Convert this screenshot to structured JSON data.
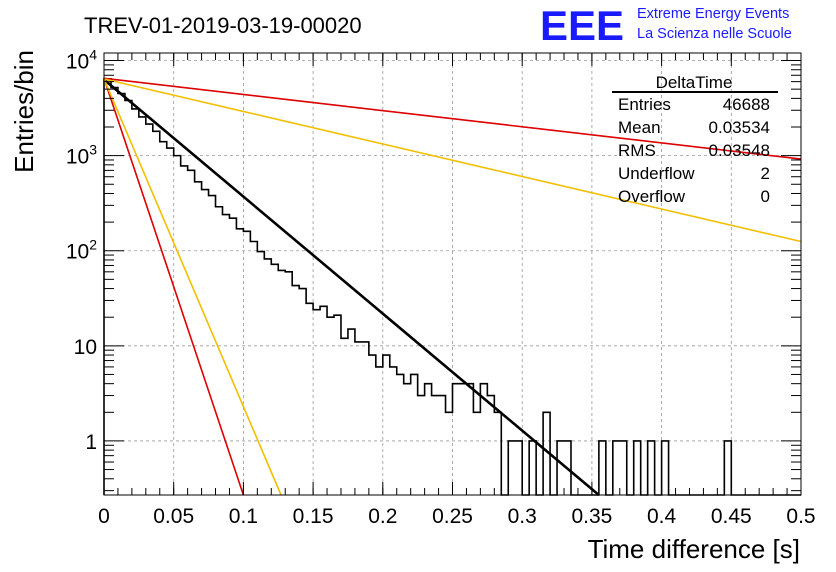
{
  "title": "TREV-01-2019-03-19-00020",
  "logo": {
    "mark": "EEE",
    "line1": "Extreme Energy Events",
    "line2": "La Scienza nelle Scuole",
    "color": "#1a1aff"
  },
  "stats_box": {
    "title": "DeltaTime",
    "rows": [
      {
        "label": "Entries",
        "value": "46688"
      },
      {
        "label": "Mean",
        "value": "0.03534"
      },
      {
        "label": "RMS",
        "value": "0.03548"
      },
      {
        "label": "Underflow",
        "value": "2"
      },
      {
        "label": "Overflow",
        "value": "0"
      }
    ]
  },
  "chart_data": {
    "type": "histogram",
    "title": "TREV-01-2019-03-19-00020",
    "xlabel": "Time difference [s]",
    "ylabel": "Entries/bin",
    "xlim": [
      0,
      0.5
    ],
    "ylim": [
      0.27,
      12000
    ],
    "yscale": "log",
    "grid": true,
    "x_ticks": [
      "0",
      "0.05",
      "0.1",
      "0.15",
      "0.2",
      "0.25",
      "0.3",
      "0.35",
      "0.4",
      "0.45",
      "0.5"
    ],
    "y_ticks": [
      {
        "base": "10",
        "exp": "4",
        "value": 10000
      },
      {
        "base": "10",
        "exp": "3",
        "value": 1000
      },
      {
        "base": "10",
        "exp": "2",
        "value": 100
      },
      {
        "base": "10",
        "exp": "",
        "value": 10
      },
      {
        "base": "1",
        "exp": "",
        "value": 1
      }
    ],
    "bin_width": 0.005,
    "histogram": {
      "color": "#000000",
      "bins": [
        [
          0.0,
          6400
        ],
        [
          0.005,
          5200
        ],
        [
          0.01,
          4500
        ],
        [
          0.015,
          3800
        ],
        [
          0.02,
          3100
        ],
        [
          0.025,
          2550
        ],
        [
          0.03,
          2150
        ],
        [
          0.035,
          1800
        ],
        [
          0.04,
          1400
        ],
        [
          0.045,
          1200
        ],
        [
          0.05,
          1000
        ],
        [
          0.055,
          780
        ],
        [
          0.06,
          700
        ],
        [
          0.065,
          530
        ],
        [
          0.07,
          440
        ],
        [
          0.075,
          380
        ],
        [
          0.08,
          290
        ],
        [
          0.085,
          240
        ],
        [
          0.09,
          220
        ],
        [
          0.095,
          170
        ],
        [
          0.1,
          160
        ],
        [
          0.105,
          125
        ],
        [
          0.11,
          98
        ],
        [
          0.115,
          82
        ],
        [
          0.12,
          72
        ],
        [
          0.125,
          62
        ],
        [
          0.13,
          60
        ],
        [
          0.135,
          43
        ],
        [
          0.14,
          40
        ],
        [
          0.145,
          28
        ],
        [
          0.15,
          24
        ],
        [
          0.155,
          26
        ],
        [
          0.16,
          20
        ],
        [
          0.165,
          21
        ],
        [
          0.17,
          12
        ],
        [
          0.175,
          15
        ],
        [
          0.18,
          11
        ],
        [
          0.185,
          11
        ],
        [
          0.19,
          8
        ],
        [
          0.195,
          6
        ],
        [
          0.2,
          8
        ],
        [
          0.205,
          6
        ],
        [
          0.21,
          5
        ],
        [
          0.215,
          4
        ],
        [
          0.22,
          5
        ],
        [
          0.225,
          3
        ],
        [
          0.23,
          4
        ],
        [
          0.235,
          3
        ],
        [
          0.24,
          3
        ],
        [
          0.245,
          2
        ],
        [
          0.25,
          4
        ],
        [
          0.255,
          4
        ],
        [
          0.26,
          4
        ],
        [
          0.265,
          2
        ],
        [
          0.27,
          4
        ],
        [
          0.275,
          3
        ],
        [
          0.28,
          2
        ],
        [
          0.285,
          0
        ],
        [
          0.29,
          1
        ],
        [
          0.295,
          1
        ],
        [
          0.3,
          0
        ],
        [
          0.305,
          1
        ],
        [
          0.31,
          0
        ],
        [
          0.315,
          2
        ],
        [
          0.32,
          0
        ],
        [
          0.325,
          1
        ],
        [
          0.33,
          1
        ],
        [
          0.335,
          0
        ],
        [
          0.34,
          0
        ],
        [
          0.345,
          0
        ],
        [
          0.35,
          0
        ],
        [
          0.355,
          1
        ],
        [
          0.36,
          0
        ],
        [
          0.365,
          1
        ],
        [
          0.37,
          1
        ],
        [
          0.375,
          0
        ],
        [
          0.38,
          1
        ],
        [
          0.385,
          0
        ],
        [
          0.39,
          1
        ],
        [
          0.395,
          0
        ],
        [
          0.4,
          1
        ],
        [
          0.405,
          0
        ],
        [
          0.41,
          0
        ],
        [
          0.415,
          0
        ],
        [
          0.42,
          0
        ],
        [
          0.425,
          0
        ],
        [
          0.43,
          0
        ],
        [
          0.435,
          0
        ],
        [
          0.44,
          0
        ],
        [
          0.445,
          1
        ],
        [
          0.45,
          0
        ],
        [
          0.455,
          0
        ],
        [
          0.46,
          0
        ],
        [
          0.465,
          0
        ],
        [
          0.47,
          0
        ],
        [
          0.475,
          0
        ],
        [
          0.48,
          0
        ],
        [
          0.485,
          0
        ],
        [
          0.49,
          0
        ],
        [
          0.495,
          0
        ]
      ]
    },
    "fit_lines": [
      {
        "color": "#000000",
        "x0": 0,
        "y0": 6300,
        "x1": 0.355,
        "y1": 0.27,
        "width": 2.6
      },
      {
        "color": "#dd0000",
        "x0": 0,
        "y0": 6500,
        "x1": 0.5,
        "y1": 920,
        "width": 1.6
      },
      {
        "color": "#f2bf00",
        "x0": 0,
        "y0": 6400,
        "x1": 0.5,
        "y1": 125,
        "width": 1.6
      },
      {
        "color": "#dd0000",
        "x0": 0,
        "y0": 6500,
        "x1": 0.1,
        "y1": 0.27,
        "width": 1.6
      },
      {
        "color": "#f2bf00",
        "x0": 0,
        "y0": 6400,
        "x1": 0.127,
        "y1": 0.27,
        "width": 1.6
      }
    ]
  }
}
